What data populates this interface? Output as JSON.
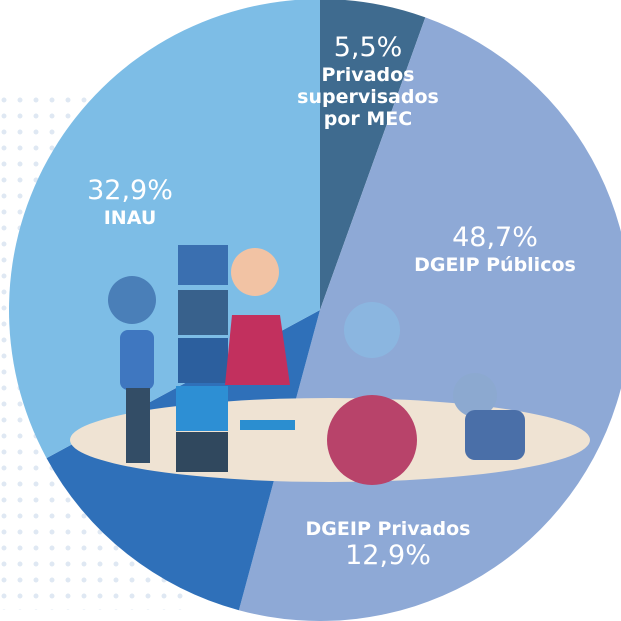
{
  "chart_data": {
    "type": "pie",
    "categories": [
      "Privados supervisados por MEC",
      "DGEIP Públicos",
      "DGEIP Privados",
      "INAU"
    ],
    "values": [
      5.5,
      48.7,
      12.9,
      32.9
    ],
    "value_labels": [
      "5,5%",
      "48,7%",
      "12,9%",
      "32,9%"
    ],
    "colors": [
      "#3f6b8f",
      "#8ea9d6",
      "#2f70b9",
      "#7dbde6"
    ]
  }
}
